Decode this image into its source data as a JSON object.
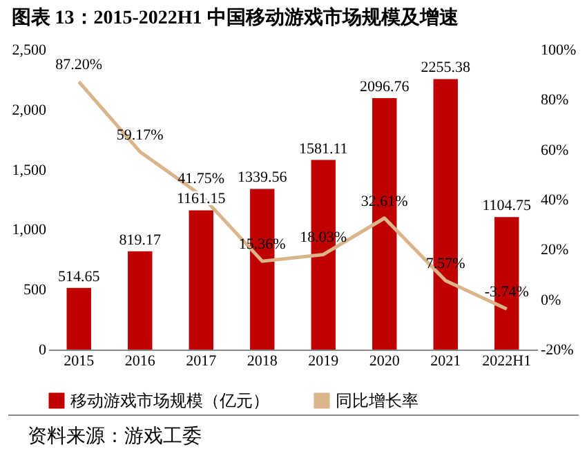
{
  "chart_data": {
    "type": "bar",
    "title": "图表 13：2015-2022H1 中国移动游戏市场规模及增速",
    "categories": [
      "2015",
      "2016",
      "2017",
      "2018",
      "2019",
      "2020",
      "2021",
      "2022H1"
    ],
    "series": [
      {
        "name": "移动游戏市场规模（亿元）",
        "color": "#c00000",
        "values": [
          514.65,
          819.17,
          1161.15,
          1339.56,
          1581.11,
          2096.76,
          2255.38,
          1104.75
        ]
      },
      {
        "name": "同比增长率",
        "type": "line",
        "axis": "y2",
        "color": "#dab48a",
        "values": [
          87.2,
          59.17,
          41.75,
          15.36,
          18.03,
          32.61,
          7.57,
          -3.74
        ],
        "value_labels": [
          "87.20%",
          "59.17%",
          "41.75%",
          "15.36%",
          "18.03%",
          "32.61%",
          "7.57%",
          "-3.74%"
        ]
      }
    ],
    "ylim": [
      0,
      2500
    ],
    "yticks": [
      {
        "value": 0,
        "label": "0"
      },
      {
        "value": 500,
        "label": "500"
      },
      {
        "value": 1000,
        "label": "1,000"
      },
      {
        "value": 1500,
        "label": "1,500"
      },
      {
        "value": 2000,
        "label": "2,000"
      },
      {
        "value": 2500,
        "label": "2,500"
      }
    ],
    "y2lim": [
      -20,
      100
    ],
    "y2ticks": [
      {
        "value": -20,
        "label": "-20%"
      },
      {
        "value": 0,
        "label": "0%"
      },
      {
        "value": 20,
        "label": "20%"
      },
      {
        "value": 40,
        "label": "40%"
      },
      {
        "value": 60,
        "label": "60%"
      },
      {
        "value": 80,
        "label": "80%"
      },
      {
        "value": 100,
        "label": "100%"
      }
    ],
    "data_labels": true,
    "legend": "bottom",
    "line_style": "solid",
    "marker": "none",
    "annotations": [
      "资料来源：游戏工委"
    ]
  }
}
